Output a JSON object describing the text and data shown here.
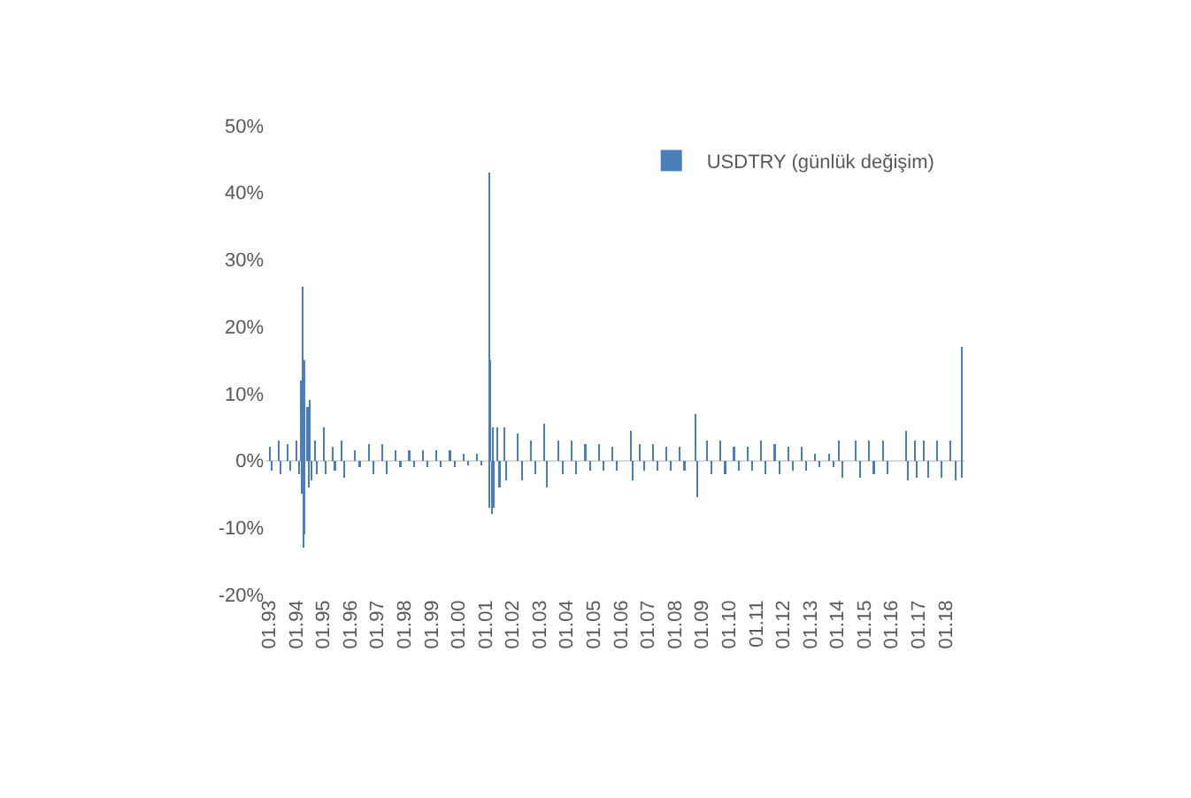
{
  "chart_data": {
    "type": "bar",
    "x": [
      "1993-01-10",
      "1993-02-10",
      "1993-05-10",
      "1993-06-10",
      "1993-09-10",
      "1993-10-10",
      "1994-01-10",
      "1994-02-10",
      "1994-03-05",
      "1994-03-15",
      "1994-04-01",
      "1994-04-10",
      "1994-04-20",
      "1994-04-28",
      "1994-06-05",
      "1994-06-20",
      "1994-07-10",
      "1994-07-25",
      "1994-09-10",
      "1994-10-10",
      "1995-01-10",
      "1995-02-10",
      "1995-05-10",
      "1995-06-10",
      "1995-09-10",
      "1995-10-10",
      "1996-03-10",
      "1996-05-10",
      "1996-09-10",
      "1996-11-10",
      "1997-03-10",
      "1997-05-10",
      "1997-09-10",
      "1997-11-10",
      "1998-03-10",
      "1998-05-10",
      "1998-09-10",
      "1998-11-10",
      "1999-03-10",
      "1999-05-10",
      "1999-09-10",
      "1999-11-10",
      "2000-03-10",
      "2000-05-10",
      "2000-09-10",
      "2000-11-10",
      "2001-02-21",
      "2001-02-26",
      "2001-03-10",
      "2001-03-25",
      "2001-04-10",
      "2001-04-25",
      "2001-06-10",
      "2001-07-10",
      "2001-09-10",
      "2001-10-10",
      "2002-03-10",
      "2002-05-10",
      "2002-09-10",
      "2002-11-10",
      "2003-03-10",
      "2003-04-10",
      "2003-09-10",
      "2003-11-10",
      "2004-03-10",
      "2004-05-10",
      "2004-09-10",
      "2004-11-10",
      "2005-03-10",
      "2005-05-10",
      "2005-09-10",
      "2005-11-10",
      "2006-05-20",
      "2006-06-10",
      "2006-09-10",
      "2006-11-10",
      "2007-03-10",
      "2007-05-10",
      "2007-09-10",
      "2007-11-10",
      "2008-03-10",
      "2008-05-10",
      "2008-10-10",
      "2008-10-25",
      "2009-03-10",
      "2009-05-10",
      "2009-09-10",
      "2009-11-10",
      "2010-03-10",
      "2010-05-10",
      "2010-09-10",
      "2010-11-10",
      "2011-03-10",
      "2011-05-10",
      "2011-09-10",
      "2011-11-10",
      "2012-03-10",
      "2012-05-10",
      "2012-09-10",
      "2012-11-10",
      "2013-03-10",
      "2013-05-10",
      "2013-09-10",
      "2013-11-10",
      "2014-01-25",
      "2014-03-10",
      "2014-09-10",
      "2014-11-10",
      "2015-03-10",
      "2015-05-10",
      "2015-09-10",
      "2015-11-10",
      "2016-07-15",
      "2016-08-10",
      "2016-11-10",
      "2016-12-10",
      "2017-03-10",
      "2017-05-10",
      "2017-09-10",
      "2017-11-10",
      "2018-03-10",
      "2018-05-20",
      "2018-08-05",
      "2018-08-13"
    ],
    "series": [
      {
        "name": "USDTRY (günlük değişim)",
        "color": "#4a7ebb",
        "values": [
          2,
          -1.5,
          3,
          -2,
          2.5,
          -1.5,
          3,
          -2,
          12,
          -5,
          26,
          -13,
          15,
          -11,
          8,
          -4,
          9,
          -3,
          3,
          -2,
          5,
          -2,
          2,
          -1.5,
          3,
          -2.5,
          1.5,
          -1,
          2.5,
          -2,
          2.5,
          -2,
          1.5,
          -1,
          1.5,
          -1,
          1.5,
          -1,
          1.5,
          -1,
          1.5,
          -1,
          1,
          -0.7,
          1,
          -0.7,
          43,
          -7,
          15,
          -8,
          5,
          -7,
          5,
          -4,
          5,
          -3,
          4,
          -3,
          3,
          -2,
          5.5,
          -4,
          3,
          -2,
          3,
          -2,
          2.5,
          -1.5,
          2.5,
          -1.5,
          2,
          -1.5,
          4.5,
          -3,
          2.5,
          -1.5,
          2.5,
          -1.5,
          2,
          -1.5,
          2,
          -1.5,
          7,
          -5.5,
          3,
          -2,
          3,
          -2,
          2,
          -1.5,
          2,
          -1.5,
          3,
          -2,
          2.5,
          -2,
          2,
          -1.5,
          2,
          -1.5,
          1,
          -1,
          1,
          -1,
          3,
          -2.5,
          3,
          -2.5,
          3,
          -2,
          3,
          -2,
          4.5,
          -3,
          3,
          -2.5,
          3,
          -2.5,
          3,
          -2.5,
          3,
          -3,
          17,
          -2.5
        ]
      }
    ],
    "xlim": [
      "1992-11-15",
      "2018-09-15"
    ],
    "xticks": [
      {
        "value": "1993-01",
        "label": "01.93"
      },
      {
        "value": "1994-01",
        "label": "01.94"
      },
      {
        "value": "1995-01",
        "label": "01.95"
      },
      {
        "value": "1996-01",
        "label": "01.96"
      },
      {
        "value": "1997-01",
        "label": "01.97"
      },
      {
        "value": "1998-01",
        "label": "01.98"
      },
      {
        "value": "1999-01",
        "label": "01.99"
      },
      {
        "value": "2000-01",
        "label": "01.00"
      },
      {
        "value": "2001-01",
        "label": "01.01"
      },
      {
        "value": "2002-01",
        "label": "01.02"
      },
      {
        "value": "2003-01",
        "label": "01.03"
      },
      {
        "value": "2004-01",
        "label": "01.04"
      },
      {
        "value": "2005-01",
        "label": "01.05"
      },
      {
        "value": "2006-01",
        "label": "01.06"
      },
      {
        "value": "2007-01",
        "label": "01.07"
      },
      {
        "value": "2008-01",
        "label": "01.08"
      },
      {
        "value": "2009-01",
        "label": "01.09"
      },
      {
        "value": "2010-01",
        "label": "01.10"
      },
      {
        "value": "2011-01",
        "label": "01.11"
      },
      {
        "value": "2012-01",
        "label": "01.12"
      },
      {
        "value": "2013-01",
        "label": "01.13"
      },
      {
        "value": "2014-01",
        "label": "01.14"
      },
      {
        "value": "2015-01",
        "label": "01.15"
      },
      {
        "value": "2016-01",
        "label": "01.16"
      },
      {
        "value": "2017-01",
        "label": "01.17"
      },
      {
        "value": "2018-01",
        "label": "01.18"
      }
    ],
    "ylim": [
      -20,
      50
    ],
    "yticks": [
      {
        "value": -20,
        "label": "-20%"
      },
      {
        "value": -10,
        "label": "-10%"
      },
      {
        "value": 0,
        "label": "0%"
      },
      {
        "value": 10,
        "label": "10%"
      },
      {
        "value": 20,
        "label": "20%"
      },
      {
        "value": 30,
        "label": "30%"
      },
      {
        "value": 40,
        "label": "40%"
      },
      {
        "value": 50,
        "label": "50%"
      }
    ],
    "legend": "top right"
  }
}
